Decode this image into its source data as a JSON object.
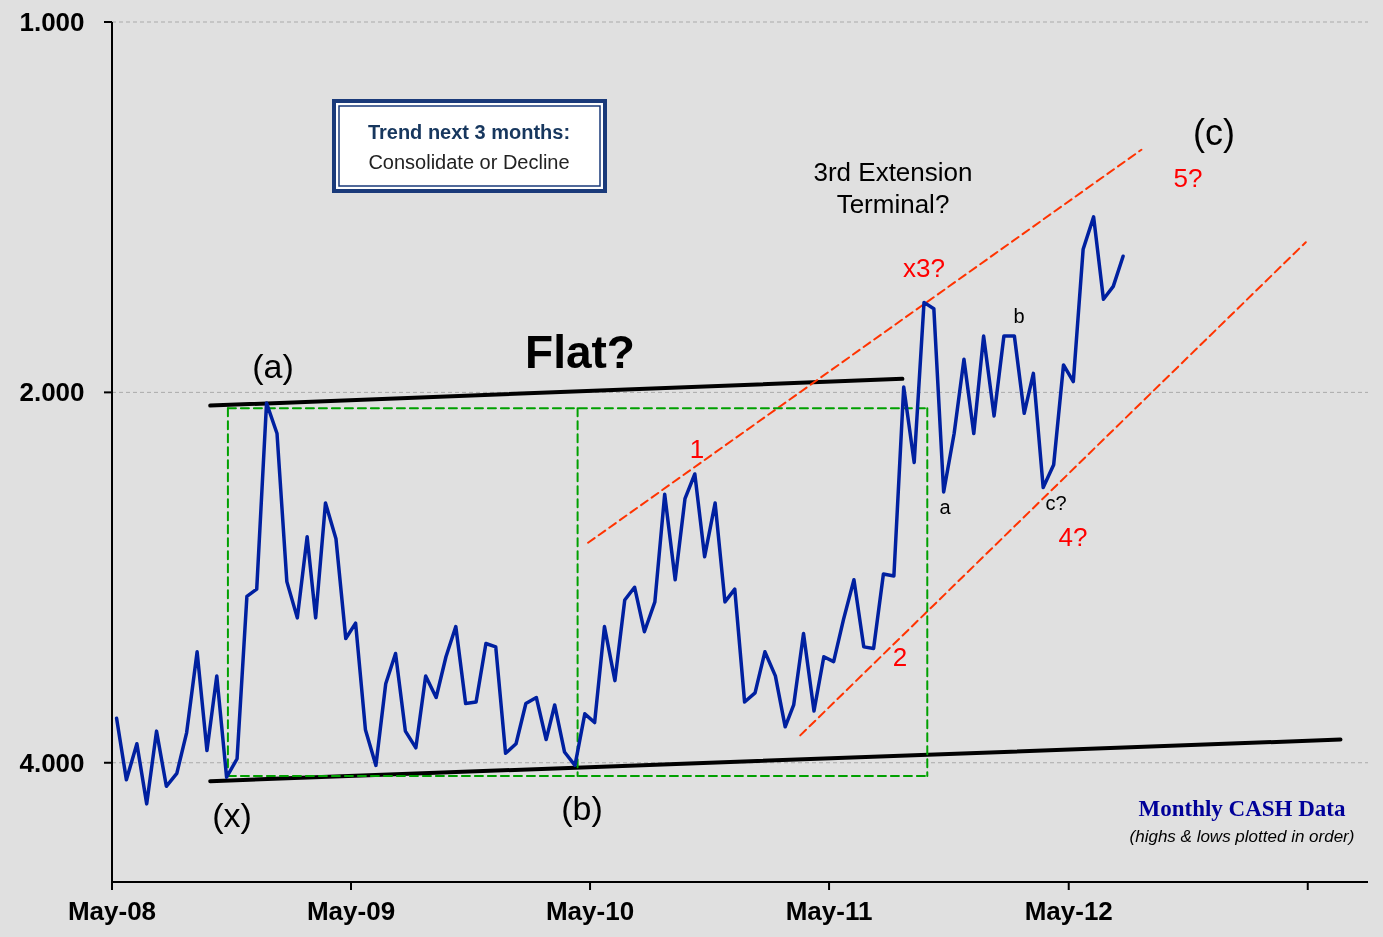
{
  "chart_data": {
    "type": "line",
    "log": "y",
    "grid": "y",
    "xlim": [
      "2008-05-01",
      "2013-08-01"
    ],
    "xticks": [
      {
        "value": "2008-05-01",
        "label": "May-08"
      },
      {
        "value": "2009-05-01",
        "label": "May-09"
      },
      {
        "value": "2010-05-01",
        "label": "May-10"
      },
      {
        "value": "2011-05-01",
        "label": "May-11"
      },
      {
        "value": "2012-05-01",
        "label": "May-12"
      },
      {
        "value": "2013-05-01",
        "label": null
      }
    ],
    "ylim": [
      5,
      1
    ],
    "yticks": [
      {
        "value": 1,
        "label": "1.000"
      },
      {
        "value": 2,
        "label": "2.000"
      },
      {
        "value": 4,
        "label": "4.000"
      }
    ],
    "series": [
      {
        "color": "#0020a0",
        "line_style": "solid",
        "x": [
          "2008-05-08",
          "2008-05-23",
          "2008-06-08",
          "2008-06-23",
          "2008-07-08",
          "2008-07-23",
          "2008-08-08",
          "2008-08-23",
          "2008-09-08",
          "2008-09-23",
          "2008-10-08",
          "2008-10-23",
          "2008-11-08",
          "2008-11-23",
          "2008-12-08",
          "2008-12-23",
          "2009-01-08",
          "2009-01-23",
          "2009-02-08",
          "2009-02-23",
          "2009-03-08",
          "2009-03-23",
          "2009-04-08",
          "2009-04-23",
          "2009-05-08",
          "2009-05-23",
          "2009-06-08",
          "2009-06-23",
          "2009-07-08",
          "2009-07-23",
          "2009-08-08",
          "2009-08-23",
          "2009-09-08",
          "2009-09-23",
          "2009-10-08",
          "2009-10-23",
          "2009-11-08",
          "2009-11-23",
          "2009-12-08",
          "2009-12-23",
          "2010-01-08",
          "2010-01-23",
          "2010-02-08",
          "2010-02-23",
          "2010-03-08",
          "2010-03-23",
          "2010-04-08",
          "2010-04-23",
          "2010-05-08",
          "2010-05-23",
          "2010-06-08",
          "2010-06-23",
          "2010-07-08",
          "2010-07-23",
          "2010-08-08",
          "2010-08-23",
          "2010-09-08",
          "2010-09-23",
          "2010-10-08",
          "2010-10-23",
          "2010-11-08",
          "2010-11-23",
          "2010-12-08",
          "2010-12-23",
          "2011-01-08",
          "2011-01-23",
          "2011-02-08",
          "2011-02-23",
          "2011-03-08",
          "2011-03-23",
          "2011-04-08",
          "2011-04-23",
          "2011-05-08",
          "2011-05-23",
          "2011-06-08",
          "2011-06-23",
          "2011-07-08",
          "2011-07-23",
          "2011-08-08",
          "2011-08-23",
          "2011-09-08",
          "2011-09-23",
          "2011-10-08",
          "2011-10-23",
          "2011-11-08",
          "2011-11-23",
          "2011-12-08",
          "2011-12-23",
          "2012-01-08",
          "2012-01-23",
          "2012-02-08",
          "2012-02-23",
          "2012-03-08",
          "2012-03-23",
          "2012-04-08",
          "2012-04-23",
          "2012-05-08",
          "2012-05-23",
          "2012-06-08",
          "2012-06-23",
          "2012-07-08",
          "2012-07-23"
        ],
        "values": [
          3.68,
          4.13,
          3.86,
          4.32,
          3.77,
          4.18,
          4.08,
          3.78,
          3.25,
          3.91,
          3.4,
          4.11,
          3.97,
          2.93,
          2.89,
          2.04,
          2.16,
          2.85,
          3.05,
          2.62,
          3.05,
          2.46,
          2.63,
          3.17,
          3.08,
          3.76,
          4.02,
          3.45,
          3.26,
          3.77,
          3.89,
          3.4,
          3.54,
          3.28,
          3.1,
          3.58,
          3.57,
          3.2,
          3.22,
          3.93,
          3.86,
          3.58,
          3.54,
          3.83,
          3.59,
          3.92,
          4.02,
          3.65,
          3.71,
          3.1,
          3.43,
          2.95,
          2.88,
          3.13,
          2.96,
          2.42,
          2.84,
          2.44,
          2.33,
          2.72,
          2.46,
          2.96,
          2.89,
          3.57,
          3.51,
          3.25,
          3.4,
          3.74,
          3.59,
          3.14,
          3.63,
          3.28,
          3.31,
          3.06,
          2.84,
          3.22,
          3.23,
          2.81,
          2.82,
          1.98,
          2.28,
          1.69,
          1.71,
          2.41,
          2.16,
          1.88,
          2.16,
          1.8,
          2.09,
          1.8,
          1.8,
          2.08,
          1.93,
          2.39,
          2.29,
          1.9,
          1.96,
          1.53,
          1.44,
          1.68,
          1.64,
          1.55
        ]
      },
      {
        "color": "#000000",
        "line_style": "solid",
        "x": [
          "2008-09-28",
          "2011-08-21"
        ],
        "values": [
          2.05,
          1.95
        ]
      },
      {
        "color": "#000000",
        "line_style": "solid",
        "x": [
          "2008-09-28",
          "2013-06-20"
        ],
        "values": [
          4.14,
          3.83
        ]
      },
      {
        "color": "#ff3300",
        "line_style": "dashed",
        "x": [
          "2010-04-28",
          "2012-08-20"
        ],
        "values": [
          2.65,
          1.27
        ]
      },
      {
        "color": "#ff3300",
        "line_style": "dashed",
        "x": [
          "2011-03-18",
          "2013-04-28"
        ],
        "values": [
          3.8,
          1.51
        ]
      },
      {
        "color": "#00a000",
        "line_style": "dashed",
        "x": [
          "2008-10-25",
          "2010-04-12",
          "2011-09-28"
        ],
        "values": [
          2.06,
          2.06,
          2.06
        ]
      },
      {
        "color": "#00a000",
        "line_style": "dashed",
        "x": [
          "2008-10-25",
          "2010-04-12",
          "2011-09-28"
        ],
        "values": [
          4.1,
          4.1,
          4.1
        ]
      },
      {
        "color": "#00a000",
        "line_style": "dashed",
        "x": [
          "2008-10-25",
          "2008-10-25"
        ],
        "values": [
          2.06,
          4.1
        ]
      },
      {
        "color": "#00a000",
        "line_style": "dashed",
        "x": [
          "2010-04-12",
          "2010-04-12"
        ],
        "values": [
          2.06,
          4.1
        ]
      },
      {
        "color": "#00a000",
        "line_style": "dashed",
        "x": [
          "2011-09-28",
          "2011-09-28"
        ],
        "values": [
          2.06,
          4.1
        ]
      }
    ],
    "annotations": [
      "(a)",
      "Flat?",
      "(x)",
      "(b)",
      "1",
      "2",
      "x3?",
      "3rd Extension\nTerminal?",
      "b",
      "a",
      "c?",
      "4?",
      "5?",
      "(c)",
      "Trend next 3 months:",
      "Consolidate or Decline",
      "Monthly CASH Data",
      "(highs & lows plotted in order)"
    ]
  }
}
